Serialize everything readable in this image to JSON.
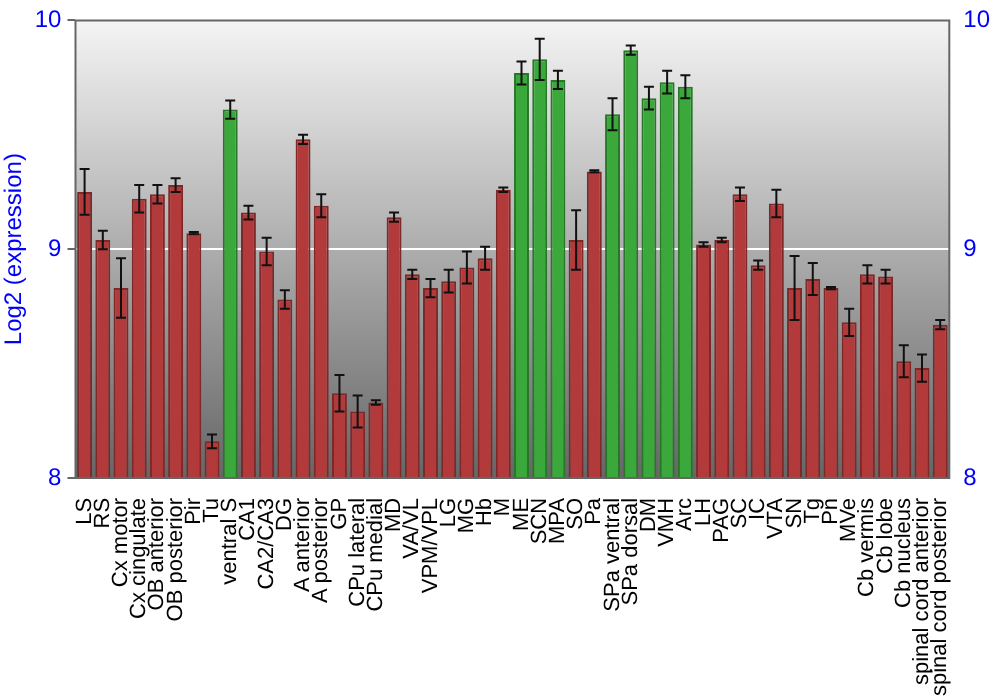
{
  "chart_data": {
    "type": "bar",
    "ylabel": "Log2 (expression)",
    "categories": [
      "LS",
      "RS",
      "Cx motor",
      "Cx cingulate",
      "OB anterior",
      "OB posterior",
      "Pir",
      "Tu",
      "ventral S",
      "CA1",
      "CA2/CA3",
      "DG",
      "A anterior",
      "A posterior",
      "GP",
      "CPu lateral",
      "CPu medial",
      "MD",
      "VA/VL",
      "VPM/VPL",
      "LG",
      "MG",
      "Hb",
      "M",
      "ME",
      "SCN",
      "MPA",
      "SO",
      "Pa",
      "SPa ventral",
      "SPa dorsal",
      "DM",
      "VMH",
      "Arc",
      "LH",
      "PAG",
      "SC",
      "IC",
      "VTA",
      "SN",
      "Tg",
      "Pn",
      "MVe",
      "Cb vermis",
      "Cb lobe",
      "Cb nucleus",
      "spinal cord anterior",
      "spinal cord posterior"
    ],
    "values": [
      9.25,
      9.04,
      8.83,
      9.22,
      9.24,
      9.28,
      9.07,
      8.16,
      9.61,
      9.16,
      8.99,
      8.78,
      9.48,
      9.19,
      8.37,
      8.29,
      8.33,
      9.14,
      8.89,
      8.83,
      8.86,
      8.92,
      8.96,
      9.26,
      9.77,
      9.83,
      9.74,
      9.04,
      9.34,
      9.59,
      9.87,
      9.66,
      9.73,
      9.71,
      9.02,
      9.04,
      9.24,
      8.93,
      9.2,
      8.83,
      8.87,
      8.83,
      8.68,
      8.89,
      8.88,
      8.51,
      8.48,
      8.67
    ],
    "errors": [
      0.1,
      0.04,
      0.13,
      0.06,
      0.04,
      0.03,
      0.005,
      0.03,
      0.04,
      0.03,
      0.06,
      0.04,
      0.02,
      0.05,
      0.08,
      0.07,
      0.01,
      0.02,
      0.02,
      0.04,
      0.05,
      0.07,
      0.05,
      0.01,
      0.05,
      0.09,
      0.04,
      0.13,
      0.005,
      0.07,
      0.02,
      0.05,
      0.05,
      0.05,
      0.01,
      0.01,
      0.03,
      0.02,
      0.06,
      0.14,
      0.07,
      0.005,
      0.06,
      0.04,
      0.03,
      0.07,
      0.06,
      0.02
    ],
    "colors": [
      "#b33a3a",
      "#b33a3a",
      "#b33a3a",
      "#b33a3a",
      "#b33a3a",
      "#b33a3a",
      "#b33a3a",
      "#b33a3a",
      "#3aa83a",
      "#b33a3a",
      "#b33a3a",
      "#b33a3a",
      "#b33a3a",
      "#b33a3a",
      "#b33a3a",
      "#b33a3a",
      "#b33a3a",
      "#b33a3a",
      "#b33a3a",
      "#b33a3a",
      "#b33a3a",
      "#b33a3a",
      "#b33a3a",
      "#b33a3a",
      "#3aa83a",
      "#3aa83a",
      "#3aa83a",
      "#b33a3a",
      "#b33a3a",
      "#3aa83a",
      "#3aa83a",
      "#3aa83a",
      "#3aa83a",
      "#3aa83a",
      "#b33a3a",
      "#b33a3a",
      "#b33a3a",
      "#b33a3a",
      "#b33a3a",
      "#b33a3a",
      "#b33a3a",
      "#b33a3a",
      "#b33a3a",
      "#b33a3a",
      "#b33a3a",
      "#b33a3a",
      "#b33a3a",
      "#b33a3a"
    ],
    "ylim": [
      8,
      10
    ],
    "yticks": [
      8,
      9,
      10
    ],
    "y2lim": [
      8,
      10
    ],
    "y2ticks": [
      8,
      9,
      10
    ],
    "grid": "y"
  }
}
